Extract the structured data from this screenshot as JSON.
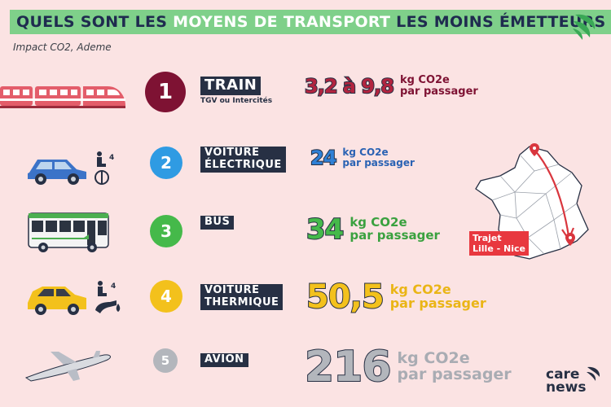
{
  "header": {
    "title_part1": "QUELS SONT LES ",
    "title_highlight": "MOYENS DE TRANSPORT",
    "title_part2": " LES MOINS ÉMETTEURS ?",
    "subtitle": "Impact CO2, Ademe"
  },
  "colors": {
    "background": "#fbe3e3",
    "title_bar": "#7fd08a",
    "navy": "#273044",
    "rank1": "#7e1233",
    "rank2": "#2f9be3",
    "rank3": "#45b94a",
    "rank4": "#f3c11c",
    "rank5": "#b3b6bc"
  },
  "modes": [
    {
      "rank": "1",
      "name": "TRAIN",
      "name_line2": "",
      "detail": "TGV ou Intercités",
      "value": "3,2 à 9,8",
      "unit_line1": "kg CO2e",
      "unit_line2": "par passager",
      "icon": "train-icon",
      "extra_icon": ""
    },
    {
      "rank": "2",
      "name": "VOITURE",
      "name_line2": "ÉLECTRIQUE",
      "detail": "",
      "value": "24",
      "unit_line1": "kg CO2e",
      "unit_line2": "par passager",
      "icon": "electric-car-icon",
      "extra_icon": "4 passengers ev-plug-icon",
      "passenger_count": "4"
    },
    {
      "rank": "3",
      "name": "BUS",
      "name_line2": "",
      "detail": "",
      "value": "34",
      "unit_line1": "kg CO2e",
      "unit_line2": "par passager",
      "icon": "bus-icon",
      "extra_icon": ""
    },
    {
      "rank": "4",
      "name": "VOITURE",
      "name_line2": "THERMIQUE",
      "detail": "",
      "value": "50,5",
      "unit_line1": "kg CO2e",
      "unit_line2": "par passager",
      "icon": "car-icon",
      "extra_icon": "4 passengers fuel-pump-icon",
      "passenger_count": "4"
    },
    {
      "rank": "5",
      "name": "AVION",
      "name_line2": "",
      "detail": "",
      "value": "216",
      "unit_line1": "kg CO2e",
      "unit_line2": "par passager",
      "icon": "airplane-icon",
      "extra_icon": ""
    }
  ],
  "map": {
    "label_line1": "Trajet",
    "label_line2": "Lille - Nice",
    "icon": "france-map-icon"
  },
  "logo": {
    "line1": "care",
    "line2": "news"
  }
}
